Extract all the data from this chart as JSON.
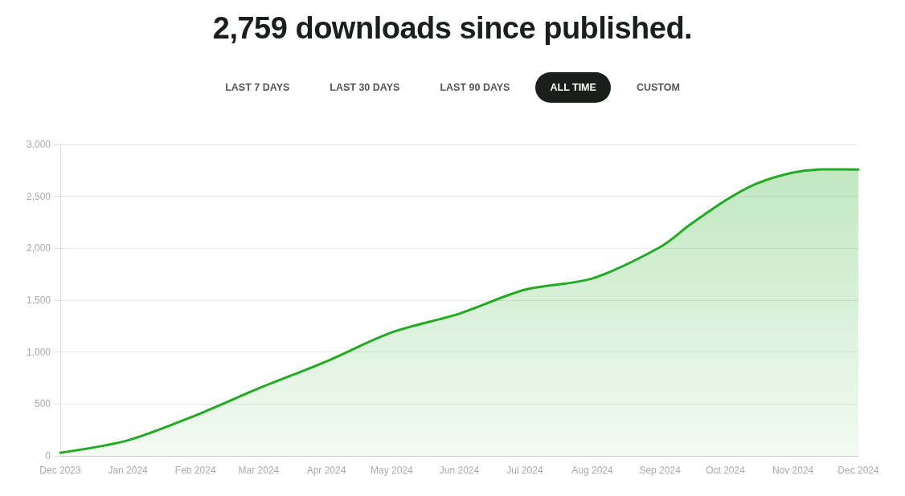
{
  "chart_data": {
    "type": "area",
    "title": "2,759 downloads since published.",
    "annotations": [
      "LAST 7 DAYS",
      "LAST 30 DAYS",
      "LAST 90 DAYS",
      "ALL TIME",
      "CUSTOM"
    ],
    "x": [
      "2023-12-01",
      "2024-01-01",
      "2024-02-01",
      "2024-03-01",
      "2024-04-01",
      "2024-05-01",
      "2024-06-01",
      "2024-07-01",
      "2024-08-01",
      "2024-09-01",
      "2024-09-15",
      "2024-10-01",
      "2024-10-15",
      "2024-11-01",
      "2024-11-15",
      "2024-12-01"
    ],
    "series": [
      {
        "color": "#22aa22",
        "values": [
          30,
          150,
          390,
          650,
          910,
          1190,
          1370,
          1600,
          1710,
          2010,
          2230,
          2460,
          2620,
          2730,
          2760,
          2759
        ]
      }
    ],
    "xlim": [
      "2023-12-01",
      "2024-12-01"
    ],
    "xticks": [
      {
        "value": "2023-12-01",
        "label": "Dec 2023"
      },
      {
        "value": "2024-01-01",
        "label": "Jan 2024"
      },
      {
        "value": "2024-02-01",
        "label": "Feb 2024"
      },
      {
        "value": "2024-03-01",
        "label": "Mar 2024"
      },
      {
        "value": "2024-04-01",
        "label": "Apr 2024"
      },
      {
        "value": "2024-05-01",
        "label": "May 2024"
      },
      {
        "value": "2024-06-01",
        "label": "Jun 2024"
      },
      {
        "value": "2024-07-01",
        "label": "Jul 2024"
      },
      {
        "value": "2024-08-01",
        "label": "Aug 2024"
      },
      {
        "value": "2024-09-01",
        "label": "Sep 2024"
      },
      {
        "value": "2024-10-01",
        "label": "Oct 2024"
      },
      {
        "value": "2024-11-01",
        "label": "Nov 2024"
      },
      {
        "value": "2024-12-01",
        "label": "Dec 2024"
      }
    ],
    "ylim": [
      0,
      3000
    ],
    "yticks": [
      {
        "value": 0,
        "label": "0"
      },
      {
        "value": 500,
        "label": "500"
      },
      {
        "value": 1000,
        "label": "1,000"
      },
      {
        "value": 1500,
        "label": "1,500"
      },
      {
        "value": 2000,
        "label": "2,000"
      },
      {
        "value": 2500,
        "label": "2,500"
      },
      {
        "value": 3000,
        "label": "3,000"
      }
    ],
    "grid": "y",
    "marker": "none",
    "line_style": "solid"
  }
}
